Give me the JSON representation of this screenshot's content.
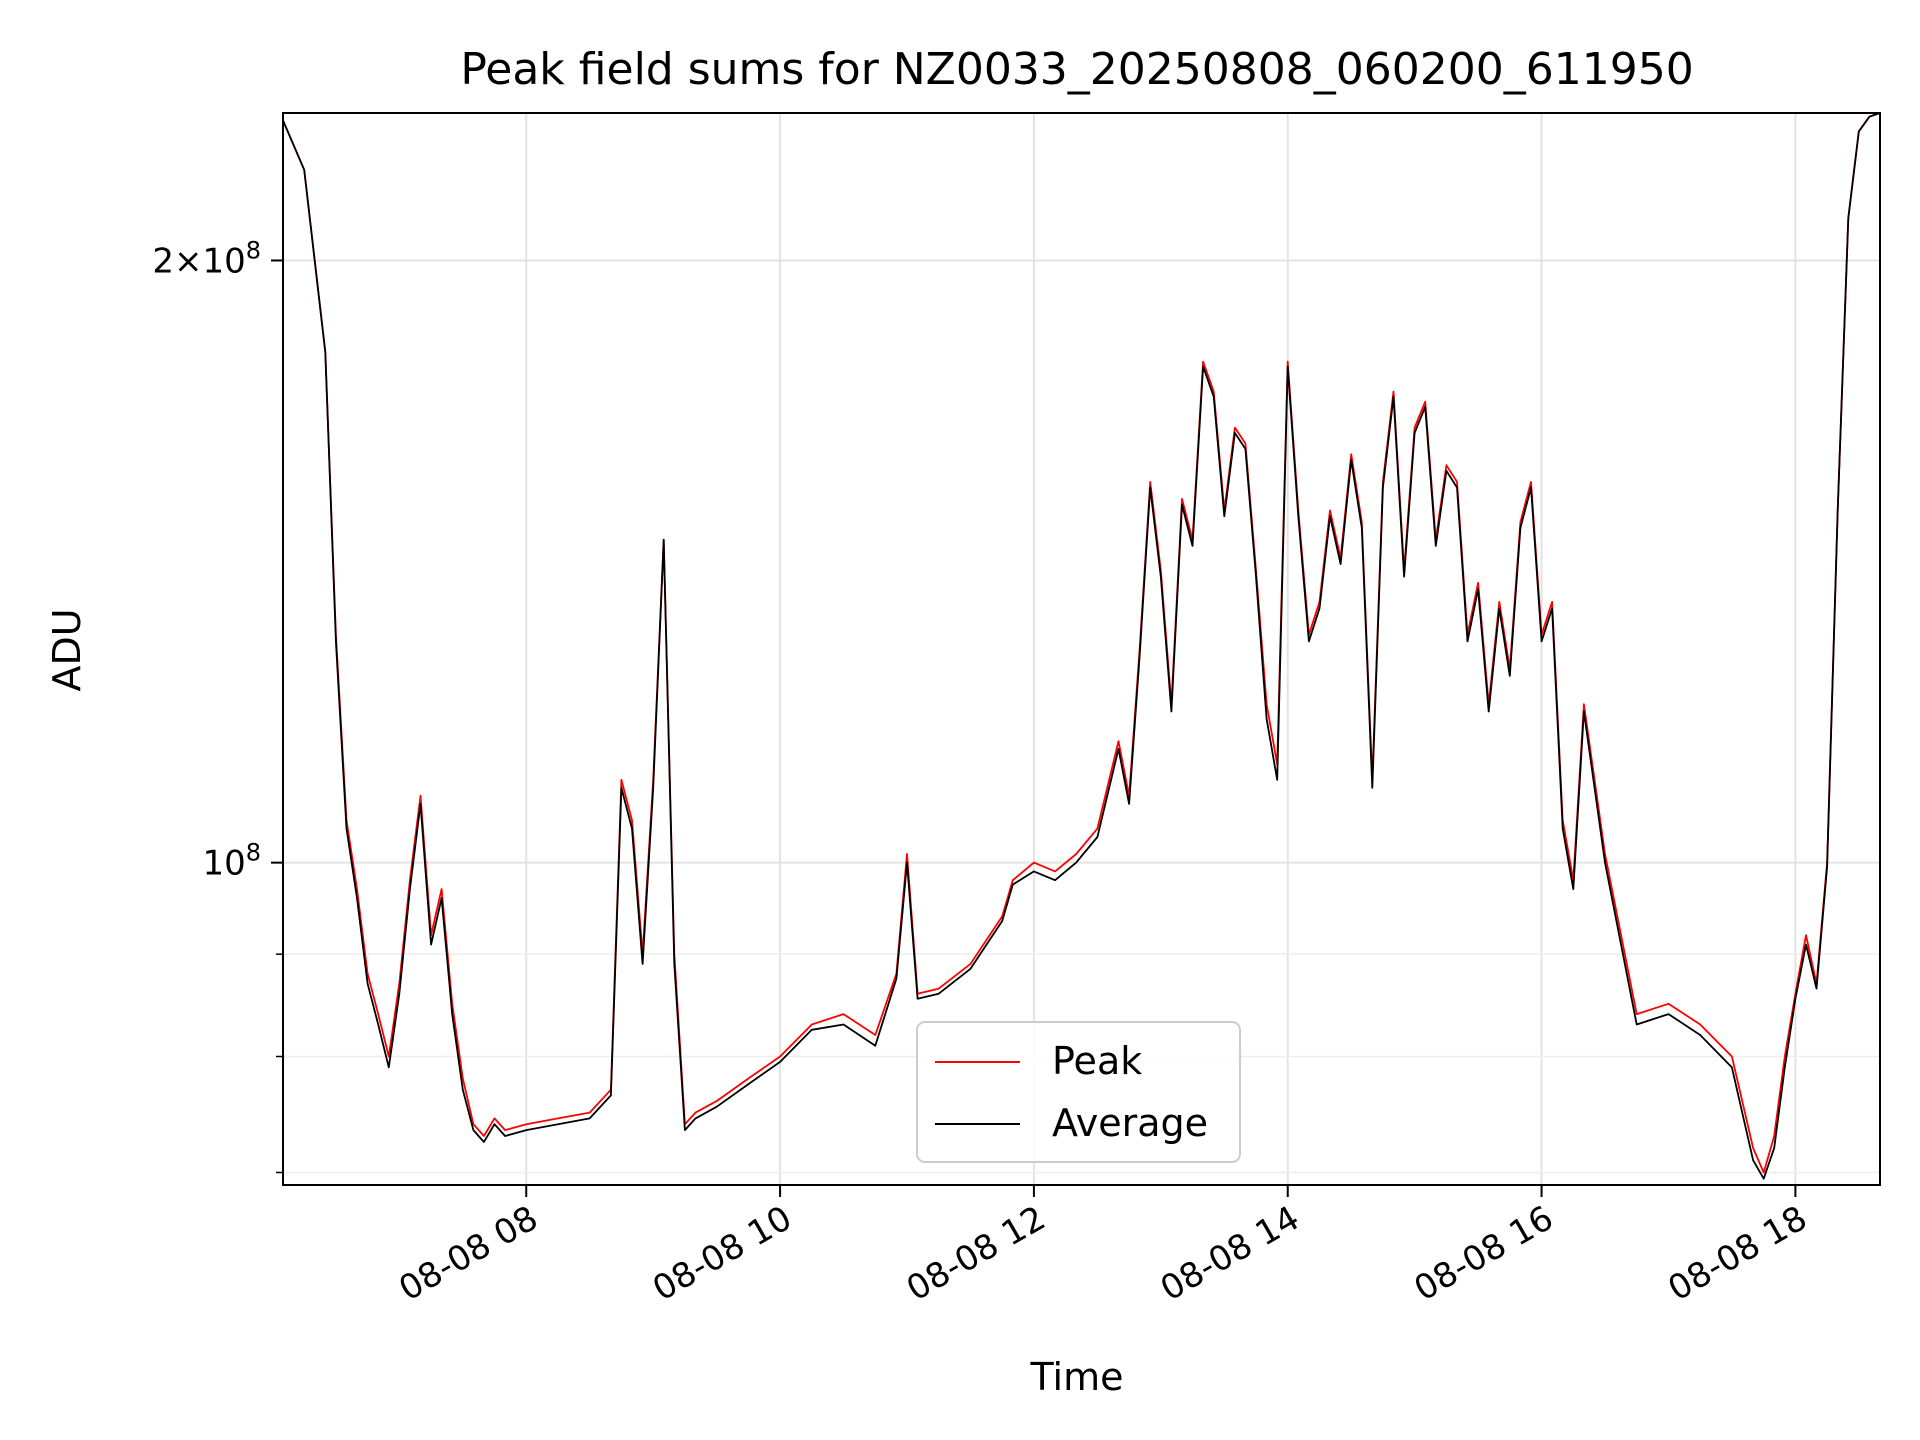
{
  "chart_data": {
    "type": "line",
    "title": "Peak field sums for NZ0033_20250808_060200_611950",
    "xlabel": "Time",
    "ylabel": "ADU",
    "x_format": "MM-DD HH",
    "xlim": [
      "2025-08-08 06:05",
      "2025-08-08 18:40"
    ],
    "ylim": [
      69000000,
      237000000
    ],
    "yscale": "log",
    "grid": true,
    "legend_position": "lower-center",
    "x_ticks": [
      "2025-08-08 08:00",
      "2025-08-08 10:00",
      "2025-08-08 12:00",
      "2025-08-08 14:00",
      "2025-08-08 16:00",
      "2025-08-08 18:00"
    ],
    "x_tick_labels": [
      "08-08 08",
      "08-08 10",
      "08-08 12",
      "08-08 14",
      "08-08 16",
      "08-08 18"
    ],
    "y_major_ticks": [
      100000000,
      200000000
    ],
    "y_major_tick_labels": [
      "10^8",
      "2×10^8"
    ],
    "y_minor_ticks": [
      70000000,
      80000000,
      90000000
    ],
    "x": [
      "2025-08-08 06:05",
      "2025-08-08 06:15",
      "2025-08-08 06:20",
      "2025-08-08 06:25",
      "2025-08-08 06:30",
      "2025-08-08 06:35",
      "2025-08-08 06:40",
      "2025-08-08 06:45",
      "2025-08-08 06:50",
      "2025-08-08 06:55",
      "2025-08-08 07:00",
      "2025-08-08 07:05",
      "2025-08-08 07:10",
      "2025-08-08 07:15",
      "2025-08-08 07:20",
      "2025-08-08 07:25",
      "2025-08-08 07:30",
      "2025-08-08 07:35",
      "2025-08-08 07:40",
      "2025-08-08 07:45",
      "2025-08-08 07:50",
      "2025-08-08 08:00",
      "2025-08-08 08:15",
      "2025-08-08 08:30",
      "2025-08-08 08:40",
      "2025-08-08 08:45",
      "2025-08-08 08:50",
      "2025-08-08 08:55",
      "2025-08-08 09:00",
      "2025-08-08 09:05",
      "2025-08-08 09:10",
      "2025-08-08 09:15",
      "2025-08-08 09:20",
      "2025-08-08 09:30",
      "2025-08-08 09:45",
      "2025-08-08 10:00",
      "2025-08-08 10:15",
      "2025-08-08 10:30",
      "2025-08-08 10:45",
      "2025-08-08 10:55",
      "2025-08-08 11:00",
      "2025-08-08 11:05",
      "2025-08-08 11:15",
      "2025-08-08 11:30",
      "2025-08-08 11:45",
      "2025-08-08 11:50",
      "2025-08-08 12:00",
      "2025-08-08 12:10",
      "2025-08-08 12:20",
      "2025-08-08 12:30",
      "2025-08-08 12:40",
      "2025-08-08 12:45",
      "2025-08-08 12:50",
      "2025-08-08 12:55",
      "2025-08-08 13:00",
      "2025-08-08 13:05",
      "2025-08-08 13:10",
      "2025-08-08 13:15",
      "2025-08-08 13:20",
      "2025-08-08 13:25",
      "2025-08-08 13:30",
      "2025-08-08 13:35",
      "2025-08-08 13:40",
      "2025-08-08 13:45",
      "2025-08-08 13:50",
      "2025-08-08 13:55",
      "2025-08-08 14:00",
      "2025-08-08 14:05",
      "2025-08-08 14:10",
      "2025-08-08 14:15",
      "2025-08-08 14:20",
      "2025-08-08 14:25",
      "2025-08-08 14:30",
      "2025-08-08 14:35",
      "2025-08-08 14:40",
      "2025-08-08 14:45",
      "2025-08-08 14:50",
      "2025-08-08 14:55",
      "2025-08-08 15:00",
      "2025-08-08 15:05",
      "2025-08-08 15:10",
      "2025-08-08 15:15",
      "2025-08-08 15:20",
      "2025-08-08 15:25",
      "2025-08-08 15:30",
      "2025-08-08 15:35",
      "2025-08-08 15:40",
      "2025-08-08 15:45",
      "2025-08-08 15:50",
      "2025-08-08 15:55",
      "2025-08-08 16:00",
      "2025-08-08 16:05",
      "2025-08-08 16:10",
      "2025-08-08 16:15",
      "2025-08-08 16:20",
      "2025-08-08 16:30",
      "2025-08-08 16:45",
      "2025-08-08 17:00",
      "2025-08-08 17:15",
      "2025-08-08 17:30",
      "2025-08-08 17:40",
      "2025-08-08 17:45",
      "2025-08-08 17:50",
      "2025-08-08 17:55",
      "2025-08-08 18:00",
      "2025-08-08 18:05",
      "2025-08-08 18:10",
      "2025-08-08 18:15",
      "2025-08-08 18:20",
      "2025-08-08 18:25",
      "2025-08-08 18:30",
      "2025-08-08 18:35",
      "2025-08-08 18:40"
    ],
    "series": [
      {
        "name": "Peak",
        "color": "#ff0000",
        "values": [
          235000000,
          222000000,
          200000000,
          180000000,
          130000000,
          105000000,
          97000000,
          88000000,
          84000000,
          80000000,
          87000000,
          98000000,
          108000000,
          92000000,
          97000000,
          85000000,
          78000000,
          74000000,
          73000000,
          74500000,
          73500000,
          74000000,
          74500000,
          75000000,
          77000000,
          110000000,
          105000000,
          90000000,
          110000000,
          145000000,
          90000000,
          74000000,
          75000000,
          76000000,
          78000000,
          80000000,
          83000000,
          84000000,
          82000000,
          88000000,
          101000000,
          86000000,
          86500000,
          89000000,
          94000000,
          98000000,
          100000000,
          99000000,
          101000000,
          104000000,
          115000000,
          108000000,
          128000000,
          155000000,
          140000000,
          120000000,
          152000000,
          145000000,
          178000000,
          172000000,
          150000000,
          165000000,
          162000000,
          140000000,
          120000000,
          112000000,
          178000000,
          150000000,
          130000000,
          135000000,
          150000000,
          142000000,
          160000000,
          148000000,
          110000000,
          155000000,
          172000000,
          140000000,
          165000000,
          170000000,
          145000000,
          158000000,
          155000000,
          130000000,
          138000000,
          120000000,
          135000000,
          125000000,
          148000000,
          155000000,
          130000000,
          135000000,
          105000000,
          98000000,
          120000000,
          101000000,
          84000000,
          85000000,
          83000000,
          80000000,
          72000000,
          70000000,
          73000000,
          80000000,
          86000000,
          92000000,
          87000000,
          100000000,
          150000000,
          210000000,
          232000000,
          236000000,
          237000000
        ]
      },
      {
        "name": "Average",
        "color": "#000000",
        "values": [
          235000000,
          222000000,
          200000000,
          180000000,
          129000000,
          104000000,
          96000000,
          87000000,
          83000000,
          79000000,
          86000000,
          97000000,
          107000000,
          91000000,
          96000000,
          84000000,
          77000000,
          73500000,
          72500000,
          74000000,
          73000000,
          73500000,
          74000000,
          74500000,
          76500000,
          109000000,
          104000000,
          89000000,
          109000000,
          145000000,
          89000000,
          73500000,
          74500000,
          75500000,
          77500000,
          79500000,
          82500000,
          83000000,
          81000000,
          87500000,
          100000000,
          85500000,
          86000000,
          88500000,
          93500000,
          97500000,
          99000000,
          98000000,
          100000000,
          103000000,
          114000000,
          107000000,
          127000000,
          154000000,
          139000000,
          119000000,
          151000000,
          144000000,
          177000000,
          171000000,
          149000000,
          164000000,
          161000000,
          139000000,
          118000000,
          110000000,
          177000000,
          149000000,
          129000000,
          134000000,
          149000000,
          141000000,
          159000000,
          147000000,
          109000000,
          154000000,
          171000000,
          139000000,
          164000000,
          169000000,
          144000000,
          157000000,
          154000000,
          129000000,
          137000000,
          119000000,
          134000000,
          124000000,
          147000000,
          154000000,
          129000000,
          134000000,
          104000000,
          97000000,
          119000000,
          100000000,
          83000000,
          84000000,
          82000000,
          79000000,
          71000000,
          69500000,
          72000000,
          79000000,
          85500000,
          91000000,
          86500000,
          99500000,
          150000000,
          210000000,
          232000000,
          236000000,
          237000000
        ]
      }
    ]
  }
}
